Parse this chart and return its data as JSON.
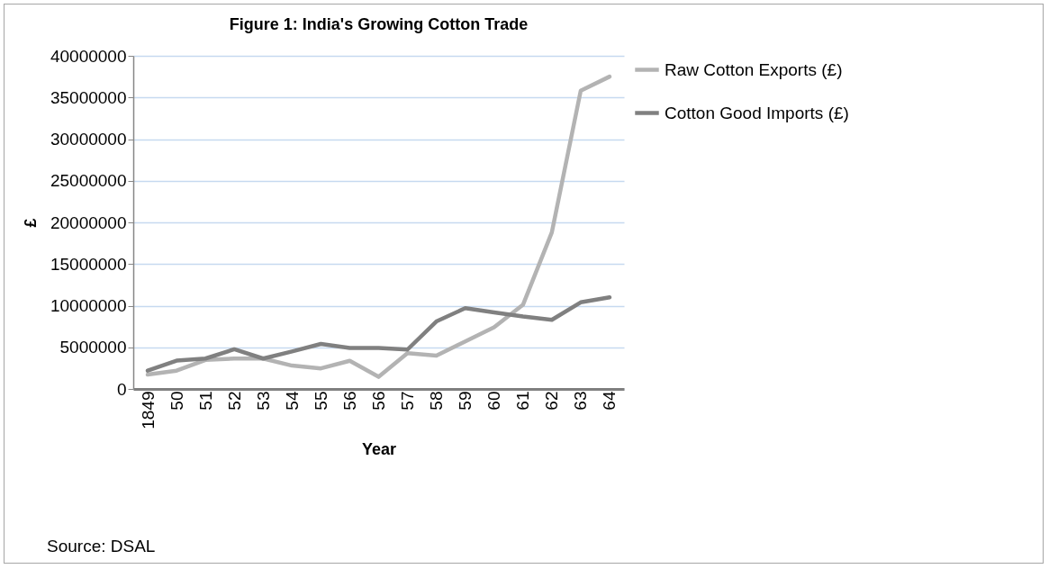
{
  "chart_data": {
    "type": "line",
    "title": "Figure 1: India's Growing Cotton Trade",
    "xlabel": "Year",
    "ylabel": "£",
    "categories": [
      "1849",
      "50",
      "51",
      "52",
      "53",
      "54",
      "55",
      "56",
      "56",
      "57",
      "58",
      "59",
      "60",
      "61",
      "62",
      "63",
      "64"
    ],
    "series": [
      {
        "name": "Raw Cotton Exports (£)",
        "color": "#b3b3b3",
        "values": [
          1720000,
          2200000,
          3480000,
          3650000,
          3650000,
          2800000,
          2470000,
          3380000,
          1450000,
          4300000,
          4000000,
          5700000,
          7400000,
          10100000,
          18800000,
          35800000,
          37500000
        ]
      },
      {
        "name": "Cotton Good Imports (£)",
        "color": "#808080",
        "values": [
          2200000,
          3400000,
          3650000,
          4760000,
          3650000,
          4500000,
          5400000,
          4930000,
          4930000,
          4730000,
          8100000,
          9700000,
          9200000,
          8700000,
          8300000,
          10400000,
          11000000
        ]
      }
    ],
    "ylim": [
      0,
      40000000
    ],
    "yticks": [
      0,
      5000000,
      10000000,
      15000000,
      20000000,
      25000000,
      30000000,
      35000000,
      40000000
    ],
    "grid": "y",
    "legend": "right",
    "line_style": "solid",
    "marker": "none",
    "annotations": [
      "Source: DSAL"
    ]
  }
}
